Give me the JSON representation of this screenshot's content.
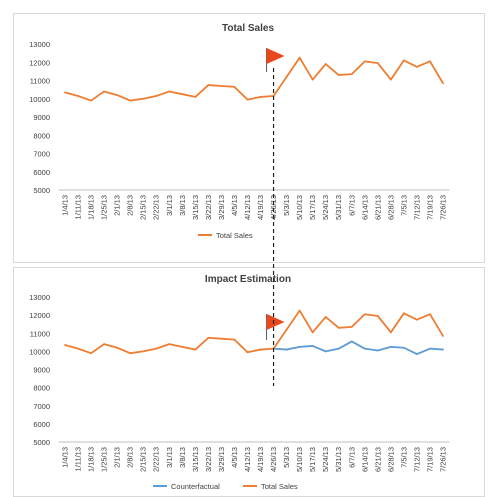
{
  "chart_data": [
    {
      "type": "line",
      "title": "Total Sales",
      "xlabel": "",
      "ylabel": "",
      "ylim": [
        5000,
        13000
      ],
      "yticks": [
        5000,
        6000,
        7000,
        8000,
        9000,
        10000,
        11000,
        12000,
        13000
      ],
      "grid": false,
      "legend_position": "bottom",
      "categories": [
        "1/4/13",
        "1/11/13",
        "1/18/13",
        "1/25/13",
        "2/1/13",
        "2/8/13",
        "2/15/13",
        "2/22/13",
        "3/1/13",
        "3/8/13",
        "3/15/13",
        "3/22/13",
        "3/29/13",
        "4/5/13",
        "4/12/13",
        "4/19/13",
        "4/26/13",
        "5/3/13",
        "5/10/13",
        "5/17/13",
        "5/24/13",
        "5/31/13",
        "6/7/13",
        "6/14/13",
        "6/21/13",
        "6/28/13",
        "7/5/13",
        "7/12/13",
        "7/19/13",
        "7/26/13"
      ],
      "series": [
        {
          "name": "Total Sales",
          "color": "#ed7d31",
          "values": [
            10350,
            10150,
            9900,
            10400,
            10200,
            9900,
            10000,
            10150,
            10400,
            10250,
            10100,
            10750,
            10700,
            10650,
            9950,
            10100,
            10150,
            11200,
            12250,
            11050,
            11900,
            11300,
            11350,
            12050,
            11950,
            11050,
            12100,
            11750,
            12050,
            10850
          ]
        }
      ],
      "event_marker": {
        "category": "4/26/13",
        "style": "dashed-line-with-flag",
        "flag_color": "#e8481c"
      }
    },
    {
      "type": "line",
      "title": "Impact Estimation",
      "xlabel": "",
      "ylabel": "",
      "ylim": [
        5000,
        13000
      ],
      "yticks": [
        5000,
        6000,
        7000,
        8000,
        9000,
        10000,
        11000,
        12000,
        13000
      ],
      "grid": false,
      "legend_position": "bottom",
      "categories": [
        "1/4/13",
        "1/11/13",
        "1/18/13",
        "1/25/13",
        "2/1/13",
        "2/8/13",
        "2/15/13",
        "2/22/13",
        "3/1/13",
        "3/8/13",
        "3/15/13",
        "3/22/13",
        "3/29/13",
        "4/5/13",
        "4/12/13",
        "4/19/13",
        "4/26/13",
        "5/3/13",
        "5/10/13",
        "5/17/13",
        "5/24/13",
        "5/31/13",
        "6/7/13",
        "6/14/13",
        "6/21/13",
        "6/28/13",
        "7/5/13",
        "7/12/13",
        "7/19/13",
        "7/26/13"
      ],
      "series": [
        {
          "name": "Counterfactual",
          "color": "#5b9bd5",
          "values": [
            null,
            null,
            null,
            null,
            null,
            null,
            null,
            null,
            null,
            null,
            null,
            null,
            null,
            null,
            null,
            null,
            10150,
            10100,
            10250,
            10300,
            10000,
            10150,
            10550,
            10150,
            10050,
            10250,
            10200,
            9850,
            10150,
            10100
          ]
        },
        {
          "name": "Total Sales",
          "color": "#ed7d31",
          "values": [
            10350,
            10150,
            9900,
            10400,
            10200,
            9900,
            10000,
            10150,
            10400,
            10250,
            10100,
            10750,
            10700,
            10650,
            9950,
            10100,
            10150,
            11200,
            12250,
            11050,
            11900,
            11300,
            11350,
            12050,
            11950,
            11050,
            12100,
            11750,
            12050,
            10850
          ]
        }
      ],
      "event_marker": {
        "category": "4/26/13",
        "style": "flag",
        "flag_color": "#e8481c"
      }
    }
  ]
}
